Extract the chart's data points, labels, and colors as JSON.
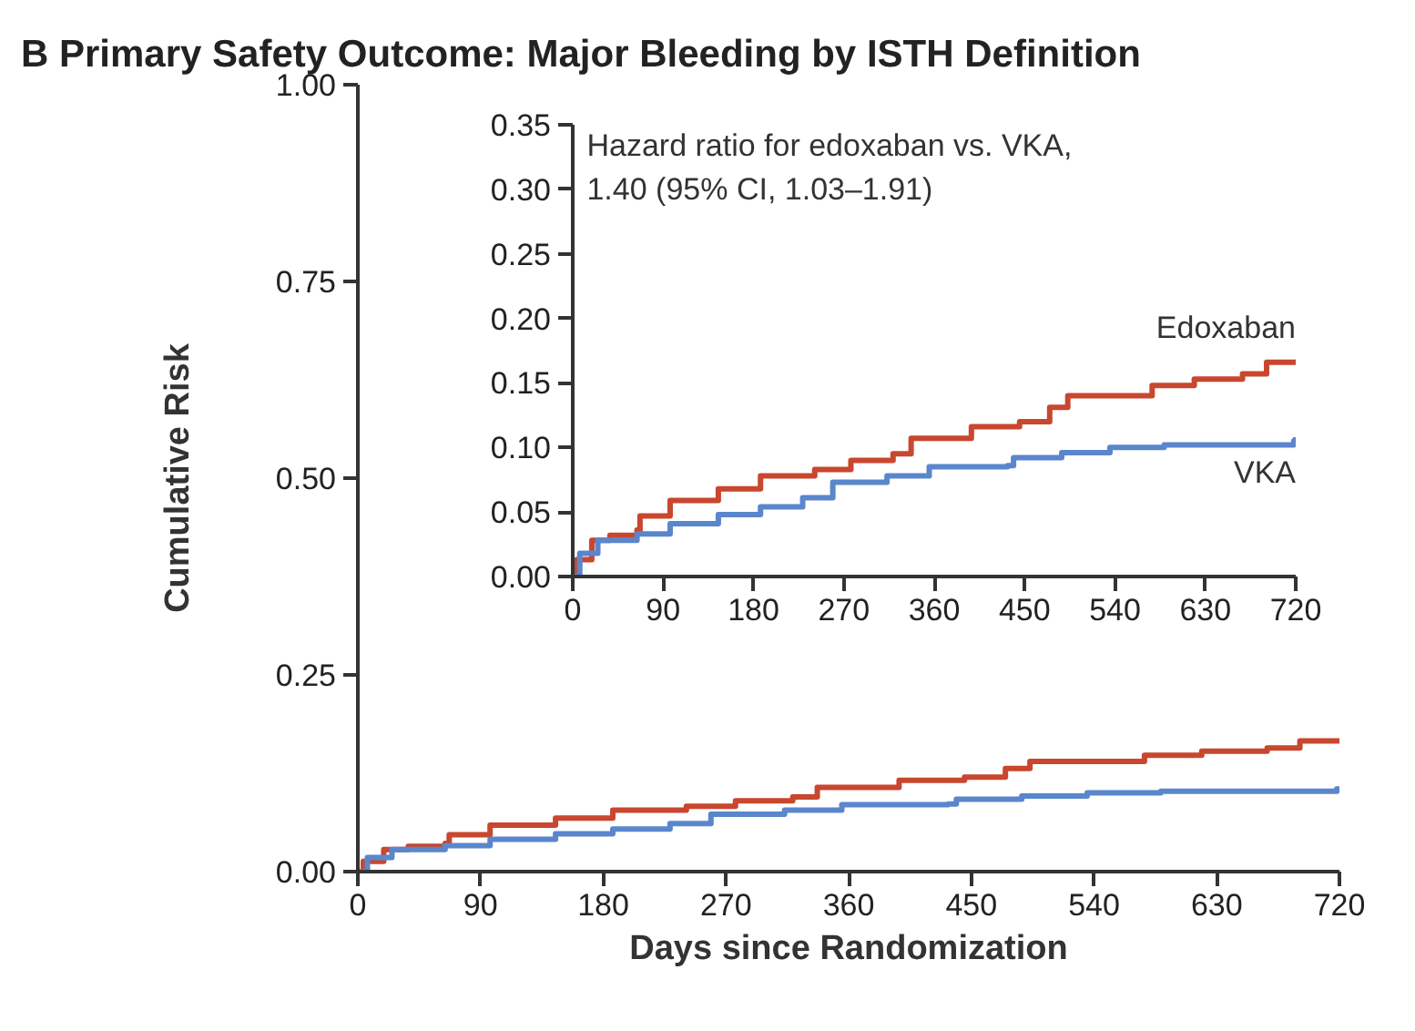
{
  "chart_data": [
    {
      "type": "step",
      "title": "B  Primary Safety Outcome: Major Bleeding by ISTH Definition",
      "xlabel": "Days since Randomization",
      "ylabel": "Cumulative Risk",
      "xlim": [
        0,
        720
      ],
      "ylim": [
        0,
        1
      ],
      "xticks": [
        0,
        90,
        180,
        270,
        360,
        450,
        540,
        630,
        720
      ],
      "yticks": [
        {
          "value": 0,
          "label": "0.00"
        },
        {
          "value": 0.25,
          "label": "0.25"
        },
        {
          "value": 0.5,
          "label": "0.50"
        },
        {
          "value": 0.75,
          "label": "0.75"
        },
        {
          "value": 1,
          "label": "1.00"
        }
      ],
      "grid": false,
      "series": [
        {
          "color": "#c8472e",
          "x": [
            0,
            4,
            19,
            37,
            64,
            67,
            97,
            145,
            187,
            241,
            277,
            319,
            337,
            397,
            445,
            475,
            493,
            541,
            577,
            619,
            667,
            691,
            720
          ],
          "values": [
            0,
            0.013,
            0.028,
            0.032,
            0.036,
            0.047,
            0.059,
            0.068,
            0.078,
            0.083,
            0.09,
            0.095,
            0.107,
            0.116,
            0.12,
            0.131,
            0.14,
            0.14,
            0.148,
            0.153,
            0.157,
            0.166,
            0.168
          ]
        },
        {
          "color": "#5a86cc",
          "x": [
            0,
            7,
            25,
            64,
            97,
            145,
            187,
            229,
            259,
            313,
            355,
            433,
            439,
            487,
            535,
            589,
            718,
            720
          ],
          "values": [
            0,
            0.018,
            0.028,
            0.033,
            0.041,
            0.048,
            0.054,
            0.061,
            0.073,
            0.078,
            0.085,
            0.086,
            0.092,
            0.096,
            0.1,
            0.102,
            0.105,
            0.108
          ]
        }
      ]
    },
    {
      "type": "step",
      "annotations": [
        "Hazard ratio for edoxaban vs. VKA,\n1.40 (95% CI, 1.03–1.91)"
      ],
      "xlim": [
        0,
        720
      ],
      "ylim": [
        0,
        0.35
      ],
      "xticks": [
        0,
        90,
        180,
        270,
        360,
        450,
        540,
        630,
        720
      ],
      "yticks": [
        {
          "value": 0,
          "label": "0.00"
        },
        {
          "value": 0.05,
          "label": "0.05"
        },
        {
          "value": 0.1,
          "label": "0.10"
        },
        {
          "value": 0.15,
          "label": "0.15"
        },
        {
          "value": 0.2,
          "label": "0.20"
        },
        {
          "value": 0.25,
          "label": "0.25"
        },
        {
          "value": 0.3,
          "label": "0.30"
        },
        {
          "value": 0.35,
          "label": "0.35"
        }
      ],
      "grid": false,
      "series": [
        {
          "name": "Edoxaban",
          "color": "#c8472e",
          "x": [
            0,
            4,
            19,
            37,
            64,
            67,
            97,
            145,
            187,
            241,
            277,
            319,
            337,
            397,
            445,
            475,
            493,
            541,
            577,
            619,
            667,
            691,
            720
          ],
          "values": [
            0,
            0.013,
            0.028,
            0.032,
            0.036,
            0.047,
            0.059,
            0.068,
            0.078,
            0.083,
            0.09,
            0.095,
            0.107,
            0.116,
            0.12,
            0.131,
            0.14,
            0.14,
            0.148,
            0.153,
            0.157,
            0.166,
            0.168
          ]
        },
        {
          "name": "VKA",
          "color": "#5a86cc",
          "x": [
            0,
            7,
            25,
            64,
            97,
            145,
            187,
            229,
            259,
            313,
            355,
            433,
            439,
            487,
            535,
            589,
            718,
            720
          ],
          "values": [
            0,
            0.018,
            0.028,
            0.033,
            0.041,
            0.048,
            0.054,
            0.061,
            0.073,
            0.078,
            0.085,
            0.086,
            0.092,
            0.096,
            0.1,
            0.102,
            0.105,
            0.108
          ]
        }
      ]
    }
  ]
}
